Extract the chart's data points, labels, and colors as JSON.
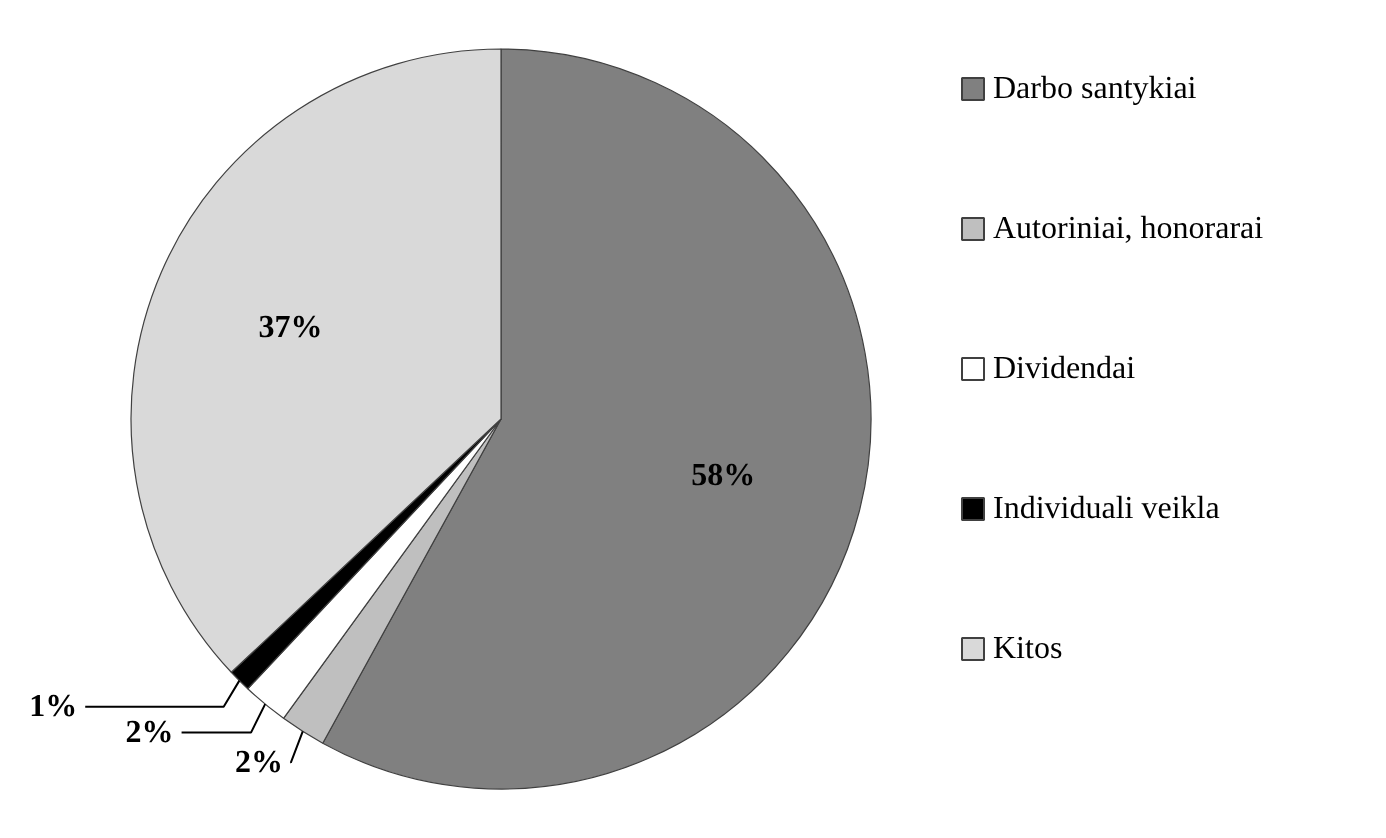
{
  "chart_data": {
    "type": "pie",
    "categories": [
      "Darbo santykiai",
      "Autoriniai, honorarai",
      "Dividendai",
      "Individuali veikla",
      "Kitos"
    ],
    "values": [
      58,
      2,
      2,
      1,
      37
    ],
    "colors": [
      "#808080",
      "#bfbfbf",
      "#ffffff",
      "#000000",
      "#d9d9d9"
    ],
    "value_labels": [
      "58%",
      "2%",
      "2%",
      "1%",
      "37%"
    ],
    "legend": "right"
  }
}
